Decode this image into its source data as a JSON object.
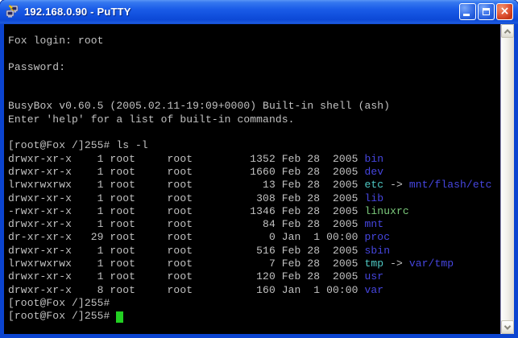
{
  "window": {
    "title": "192.168.0.90 - PuTTY"
  },
  "titlebar": {
    "app_icon": "putty-two-computers-lightning",
    "buttons": [
      "minimize",
      "maximize",
      "close"
    ]
  },
  "colors": {
    "titlebar_blue": "#1a5ce8",
    "border_blue": "#0b44d0",
    "close_red": "#d8542c",
    "bg": "#000000",
    "fg": "#c2c2c2",
    "dir": "#4646e0",
    "link": "#4fc9c4",
    "exec": "#7ccb7c",
    "cursor": "#22d022"
  },
  "scrollbar": {
    "up_icon": "chevron-up",
    "down_icon": "chevron-down"
  },
  "terminal": {
    "lines": [
      {
        "segments": [
          {
            "t": "Fox login: root",
            "c": "fg"
          }
        ]
      },
      {
        "segments": []
      },
      {
        "segments": [
          {
            "t": "Password:",
            "c": "fg"
          }
        ]
      },
      {
        "segments": []
      },
      {
        "segments": []
      },
      {
        "segments": [
          {
            "t": "BusyBox v0.60.5 (2005.02.11-19:09+0000) Built-in shell (ash)",
            "c": "fg"
          }
        ]
      },
      {
        "segments": [
          {
            "t": "Enter 'help' for a list of built-in commands.",
            "c": "fg"
          }
        ]
      },
      {
        "segments": []
      },
      {
        "segments": [
          {
            "t": "[root@Fox /]255# ls -l",
            "c": "fg"
          }
        ]
      },
      {
        "segments": [
          {
            "t": "drwxr-xr-x    1 root     root         1352 Feb 28  2005 ",
            "c": "fg"
          },
          {
            "t": "bin",
            "c": "dir"
          }
        ]
      },
      {
        "segments": [
          {
            "t": "drwxr-xr-x    1 root     root         1660 Feb 28  2005 ",
            "c": "fg"
          },
          {
            "t": "dev",
            "c": "dir"
          }
        ]
      },
      {
        "segments": [
          {
            "t": "lrwxrwxrwx    1 root     root           13 Feb 28  2005 ",
            "c": "fg"
          },
          {
            "t": "etc",
            "c": "link"
          },
          {
            "t": " -> ",
            "c": "fg"
          },
          {
            "t": "mnt/flash/etc",
            "c": "dir"
          }
        ]
      },
      {
        "segments": [
          {
            "t": "drwxr-xr-x    1 root     root          308 Feb 28  2005 ",
            "c": "fg"
          },
          {
            "t": "lib",
            "c": "dir"
          }
        ]
      },
      {
        "segments": [
          {
            "t": "-rwxr-xr-x    1 root     root         1346 Feb 28  2005 ",
            "c": "fg"
          },
          {
            "t": "linuxrc",
            "c": "exec"
          }
        ]
      },
      {
        "segments": [
          {
            "t": "drwxr-xr-x    1 root     root           84 Feb 28  2005 ",
            "c": "fg"
          },
          {
            "t": "mnt",
            "c": "dir"
          }
        ]
      },
      {
        "segments": [
          {
            "t": "dr-xr-xr-x   29 root     root            0 Jan  1 00:00 ",
            "c": "fg"
          },
          {
            "t": "proc",
            "c": "dir"
          }
        ]
      },
      {
        "segments": [
          {
            "t": "drwxr-xr-x    1 root     root          516 Feb 28  2005 ",
            "c": "fg"
          },
          {
            "t": "sbin",
            "c": "dir"
          }
        ]
      },
      {
        "segments": [
          {
            "t": "lrwxrwxrwx    1 root     root            7 Feb 28  2005 ",
            "c": "fg"
          },
          {
            "t": "tmp",
            "c": "link"
          },
          {
            "t": " -> ",
            "c": "fg"
          },
          {
            "t": "var/tmp",
            "c": "dir"
          }
        ]
      },
      {
        "segments": [
          {
            "t": "drwxr-xr-x    1 root     root          120 Feb 28  2005 ",
            "c": "fg"
          },
          {
            "t": "usr",
            "c": "dir"
          }
        ]
      },
      {
        "segments": [
          {
            "t": "drwxr-xr-x    8 root     root          160 Jan  1 00:00 ",
            "c": "fg"
          },
          {
            "t": "var",
            "c": "dir"
          }
        ]
      },
      {
        "segments": [
          {
            "t": "[root@Fox /]255#",
            "c": "fg"
          }
        ]
      },
      {
        "segments": [
          {
            "t": "[root@Fox /]255# ",
            "c": "fg"
          },
          {
            "cursor": true
          }
        ]
      }
    ]
  }
}
